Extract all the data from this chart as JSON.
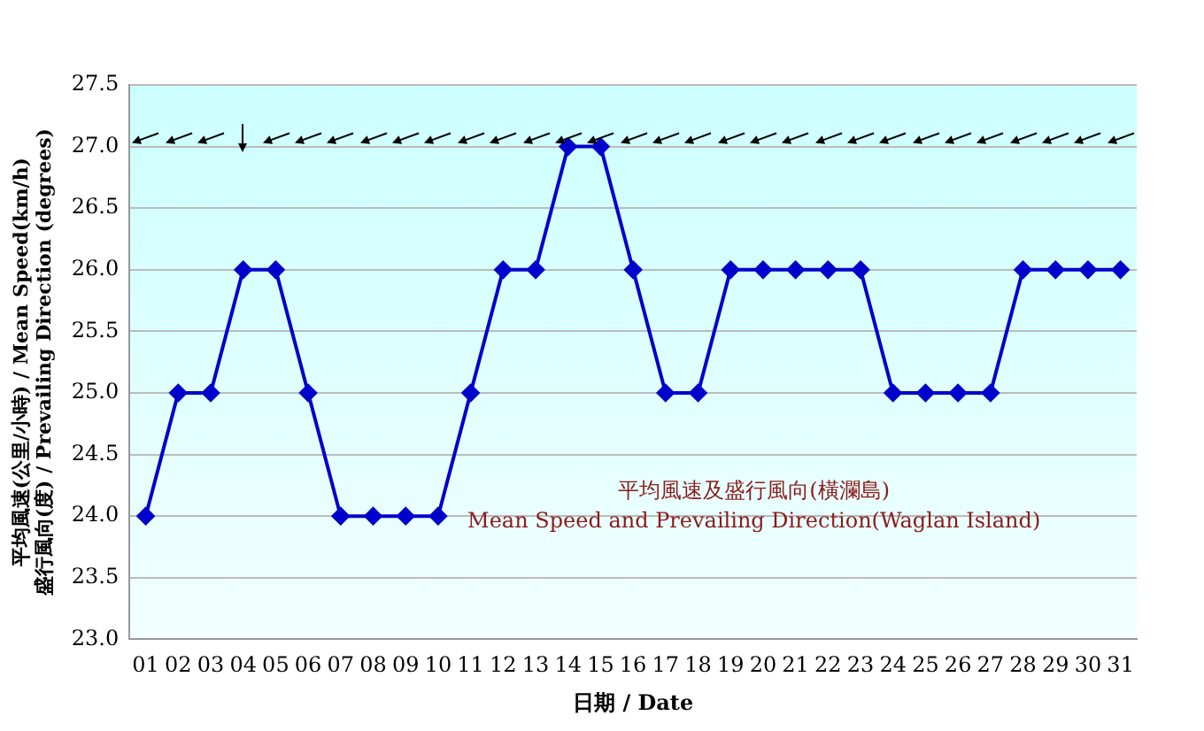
{
  "chart_data": {
    "type": "line",
    "xlabel": "日期 / Date",
    "ylabel": "平均風速(公里/小時) / Mean Speed(km/h)\n盛行風向(度) / Prevailing Direction (degrees)",
    "annotations": [
      "平均風速及盛行風向(橫瀾島)",
      "Mean Speed and Prevailing Direction(Waglan Island)"
    ],
    "categories": [
      "01",
      "02",
      "03",
      "04",
      "05",
      "06",
      "07",
      "08",
      "09",
      "10",
      "11",
      "12",
      "13",
      "14",
      "15",
      "16",
      "17",
      "18",
      "19",
      "20",
      "21",
      "22",
      "23",
      "24",
      "25",
      "26",
      "27",
      "28",
      "29",
      "30",
      "31"
    ],
    "series": [
      {
        "color": "#0000cc",
        "values": [
          24,
          25,
          25,
          26,
          26,
          25,
          24,
          24,
          24,
          24,
          25,
          26,
          26,
          27,
          27,
          26,
          25,
          25,
          26,
          26,
          26,
          26,
          26,
          25,
          25,
          25,
          25,
          26,
          26,
          26,
          26
        ]
      }
    ],
    "ylim": [
      23,
      27.5
    ],
    "yticks": [
      {
        "value": 23,
        "label": "23.0"
      },
      {
        "value": 23.5,
        "label": "23.5"
      },
      {
        "value": 24,
        "label": "24.0"
      },
      {
        "value": 24.5,
        "label": "24.5"
      },
      {
        "value": 25,
        "label": "25.0"
      },
      {
        "value": 25.5,
        "label": "25.5"
      },
      {
        "value": 26,
        "label": "26.0"
      },
      {
        "value": 26.5,
        "label": "26.5"
      },
      {
        "value": 27,
        "label": "27.0"
      },
      {
        "value": 27.5,
        "label": "27.5"
      }
    ],
    "grid": "y",
    "marker": "diamond",
    "line_style": "solid",
    "legend": false
  }
}
